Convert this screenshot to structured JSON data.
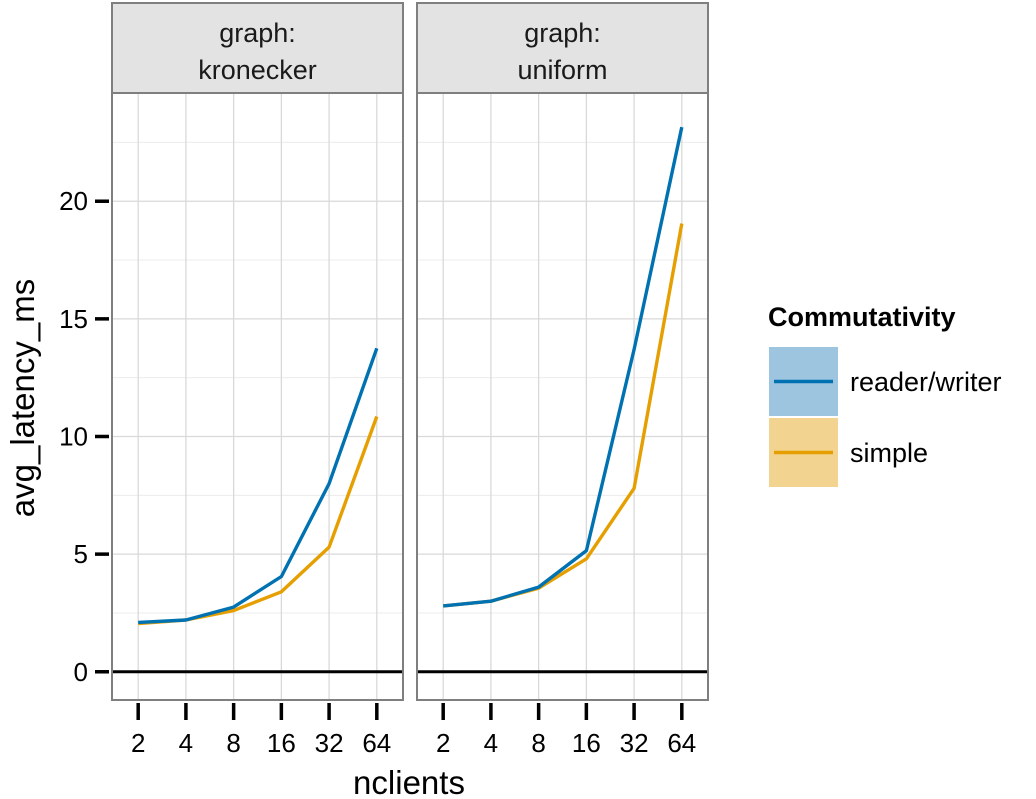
{
  "chart_data": {
    "type": "line",
    "xlabel": "nclients",
    "ylabel": "avg_latency_ms",
    "x": [
      2,
      4,
      8,
      16,
      32,
      64
    ],
    "x_tick_labels": [
      "2",
      "4",
      "8",
      "16",
      "32",
      "64"
    ],
    "x_scale": "log2",
    "ylim": [
      -1.2,
      24.6
    ],
    "y_ticks": [
      0,
      5,
      10,
      15,
      20
    ],
    "y_tick_labels": [
      "0",
      "5",
      "10",
      "15",
      "20"
    ],
    "grid": true,
    "facet_variable": "graph",
    "panels": [
      {
        "strip_line1": "graph:",
        "strip_line2": "kronecker",
        "series": [
          {
            "name": "reader/writer",
            "values": [
              2.1,
              2.2,
              2.75,
              4.05,
              8.0,
              13.75
            ]
          },
          {
            "name": "simple",
            "values": [
              2.05,
              2.2,
              2.6,
              3.4,
              5.3,
              10.85
            ]
          }
        ]
      },
      {
        "strip_line1": "graph:",
        "strip_line2": "uniform",
        "series": [
          {
            "name": "reader/writer",
            "values": [
              2.8,
              3.0,
              3.6,
              5.15,
              13.7,
              23.15
            ]
          },
          {
            "name": "simple",
            "values": [
              2.8,
              3.0,
              3.55,
              4.8,
              7.8,
              19.05
            ]
          }
        ]
      }
    ],
    "legend": {
      "title": "Commutativity",
      "placement": "right",
      "entries": [
        {
          "label": "reader/writer",
          "color": "#0072b2",
          "fill": "#9ec5df"
        },
        {
          "label": "simple",
          "color": "#e69f00",
          "fill": "#f2d38f"
        }
      ]
    },
    "colors": {
      "reader/writer": "#0072b2",
      "simple": "#e69f00",
      "strip_fill": "#e3e3e3",
      "panel_border": "#7f7f7f",
      "grid": "#d9d9d9"
    }
  }
}
